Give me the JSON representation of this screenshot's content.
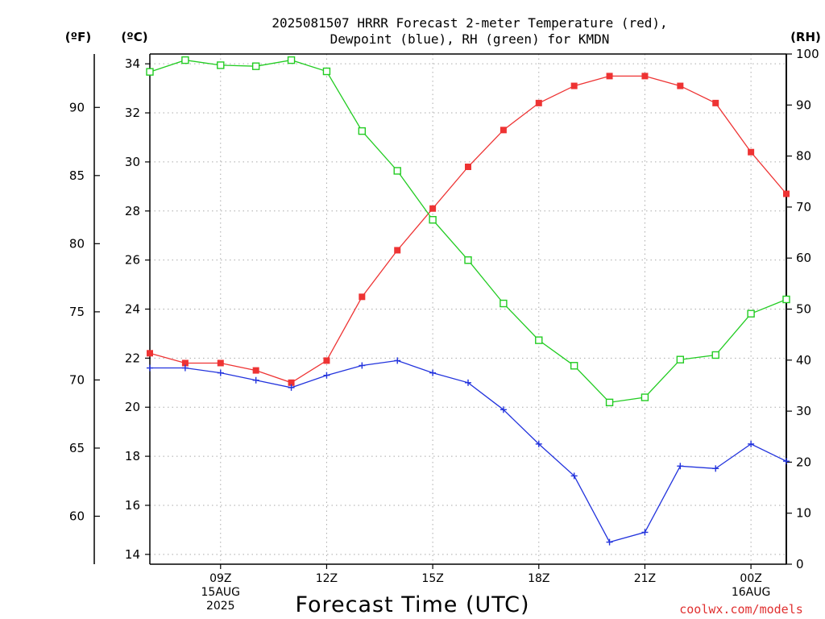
{
  "title": {
    "line1": "2025081507 HRRR Forecast 2-meter Temperature (red),",
    "line2": "Dewpoint (blue), RH (green) for KMDN"
  },
  "unit_labels": {
    "fahrenheit": "(ºF)",
    "celsius": "(ºC)",
    "rh": "(RH)"
  },
  "credit": "coolwx.com/models",
  "colors": {
    "temperature": "#ee3333",
    "dewpoint": "#2233dd",
    "rh": "#22cc22",
    "grid": "#aaaaaa"
  },
  "chart_data": {
    "type": "line",
    "title": "2025081507 HRRR Forecast 2-meter Temperature (red), Dewpoint (blue), RH (green) for KMDN",
    "xlabel": "Forecast Time (UTC)",
    "x_unit": "hours",
    "x": [
      7,
      8,
      9,
      10,
      11,
      12,
      13,
      14,
      15,
      16,
      17,
      18,
      19,
      20,
      21,
      22,
      23,
      24,
      25
    ],
    "xlim": [
      7,
      25
    ],
    "x_ticks": [
      {
        "x": 9,
        "lines": [
          "09Z",
          "15AUG",
          "2025"
        ]
      },
      {
        "x": 12,
        "lines": [
          "12Z"
        ]
      },
      {
        "x": 15,
        "lines": [
          "15Z"
        ]
      },
      {
        "x": 18,
        "lines": [
          "18Z"
        ]
      },
      {
        "x": 21,
        "lines": [
          "21Z"
        ]
      },
      {
        "x": 24,
        "lines": [
          "00Z",
          "16AUG"
        ]
      }
    ],
    "y_left_celsius": {
      "label": "(ºC)",
      "lim": [
        13.6,
        34.4
      ],
      "ticks": [
        14,
        16,
        18,
        20,
        22,
        24,
        26,
        28,
        30,
        32,
        34
      ]
    },
    "y_left_fahrenheit": {
      "label": "(ºF)",
      "ticks": [
        60,
        65,
        70,
        75,
        80,
        85,
        90
      ]
    },
    "y_right_rh": {
      "label": "(RH)",
      "lim": [
        0,
        100
      ],
      "ticks": [
        0,
        10,
        20,
        30,
        40,
        50,
        60,
        70,
        80,
        90,
        100
      ]
    },
    "grid": true,
    "series": [
      {
        "name": "Temperature (red)",
        "axis": "celsius",
        "marker": "filled-square",
        "color": "#ee3333",
        "values": [
          22.2,
          21.8,
          21.8,
          21.5,
          21.0,
          21.9,
          24.5,
          26.4,
          28.1,
          29.8,
          31.3,
          32.4,
          33.1,
          33.5,
          33.5,
          33.1,
          32.4,
          30.4,
          28.7
        ]
      },
      {
        "name": "Dewpoint (blue)",
        "axis": "celsius",
        "marker": "plus",
        "color": "#2233dd",
        "values": [
          21.6,
          21.6,
          21.4,
          21.1,
          20.8,
          21.3,
          21.7,
          21.9,
          21.4,
          21.0,
          19.9,
          18.5,
          17.2,
          14.5,
          14.9,
          17.6,
          17.5,
          18.5,
          17.8
        ]
      },
      {
        "name": "RH (green)",
        "axis": "rh",
        "marker": "open-square",
        "color": "#22cc22",
        "values": [
          96.5,
          98.8,
          97.8,
          97.6,
          98.8,
          96.6,
          84.9,
          77.1,
          67.5,
          59.6,
          51.1,
          43.9,
          38.9,
          31.7,
          32.7,
          40.1,
          41.0,
          49.1,
          51.9
        ]
      }
    ]
  }
}
